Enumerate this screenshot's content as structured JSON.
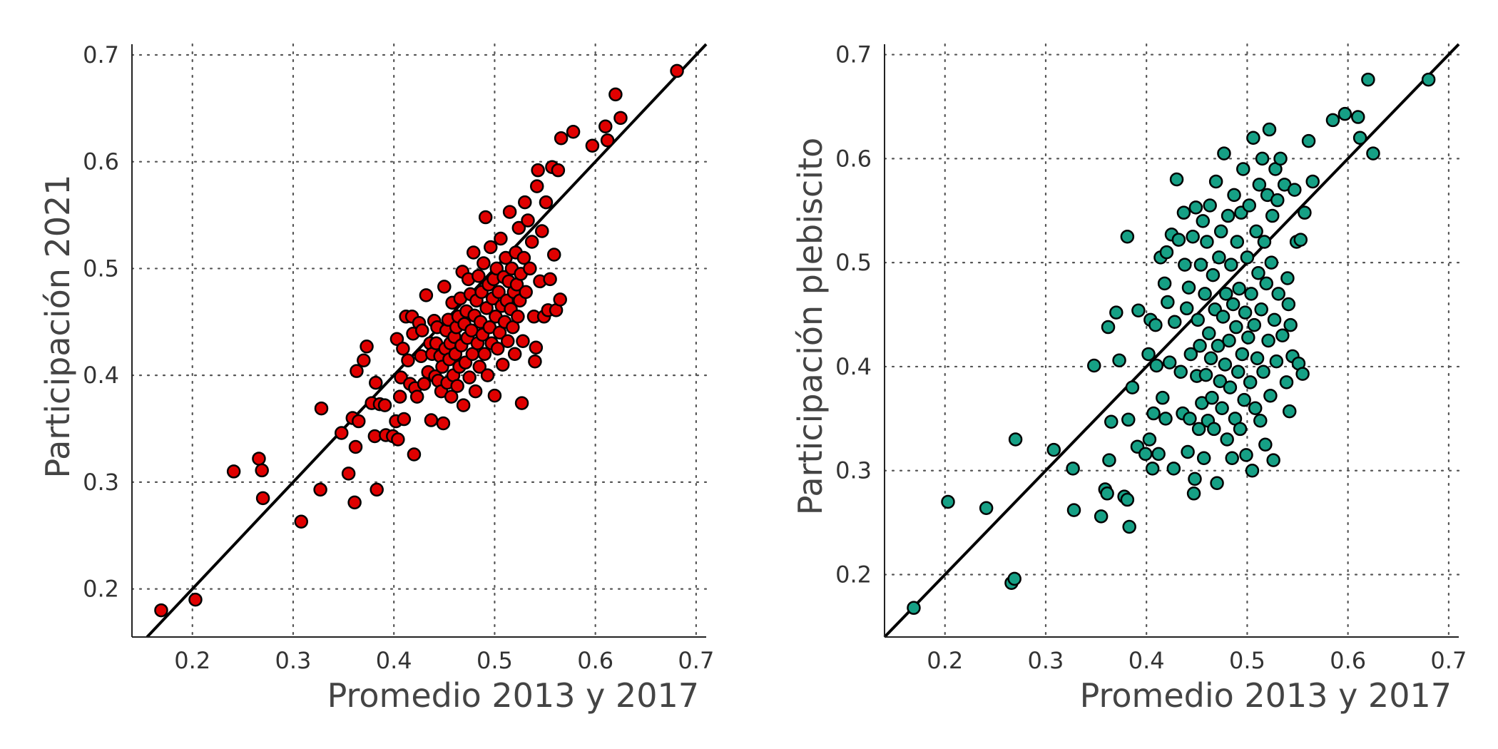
{
  "chart_data": [
    {
      "type": "scatter",
      "xlabel": "Promedio 2013 y 2017",
      "ylabel": "Participación 2021",
      "xlim": [
        0.14,
        0.71
      ],
      "ylim": [
        0.155,
        0.71
      ],
      "xticks": [
        "0.2",
        "0.3",
        "0.4",
        "0.5",
        "0.6",
        "0.7"
      ],
      "yticks": [
        "0.2",
        "0.3",
        "0.4",
        "0.5",
        "0.6",
        "0.7"
      ],
      "grid": true,
      "reference_line": "y = x",
      "marker_color": "#e00000",
      "points": [
        [
          0.169,
          0.18
        ],
        [
          0.203,
          0.19
        ],
        [
          0.241,
          0.31
        ],
        [
          0.266,
          0.322
        ],
        [
          0.269,
          0.311
        ],
        [
          0.27,
          0.285
        ],
        [
          0.308,
          0.263
        ],
        [
          0.327,
          0.293
        ],
        [
          0.328,
          0.369
        ],
        [
          0.348,
          0.346
        ],
        [
          0.355,
          0.308
        ],
        [
          0.359,
          0.36
        ],
        [
          0.361,
          0.281
        ],
        [
          0.362,
          0.333
        ],
        [
          0.363,
          0.404
        ],
        [
          0.365,
          0.357
        ],
        [
          0.37,
          0.414
        ],
        [
          0.373,
          0.427
        ],
        [
          0.378,
          0.374
        ],
        [
          0.381,
          0.343
        ],
        [
          0.382,
          0.393
        ],
        [
          0.383,
          0.293
        ],
        [
          0.386,
          0.373
        ],
        [
          0.391,
          0.372
        ],
        [
          0.392,
          0.344
        ],
        [
          0.399,
          0.343
        ],
        [
          0.402,
          0.357
        ],
        [
          0.403,
          0.434
        ],
        [
          0.404,
          0.34
        ],
        [
          0.406,
          0.38
        ],
        [
          0.407,
          0.398
        ],
        [
          0.409,
          0.425
        ],
        [
          0.41,
          0.359
        ],
        [
          0.412,
          0.455
        ],
        [
          0.414,
          0.414
        ],
        [
          0.416,
          0.392
        ],
        [
          0.418,
          0.455
        ],
        [
          0.419,
          0.439
        ],
        [
          0.42,
          0.326
        ],
        [
          0.421,
          0.388
        ],
        [
          0.423,
          0.38
        ],
        [
          0.425,
          0.449
        ],
        [
          0.427,
          0.418
        ],
        [
          0.428,
          0.442
        ],
        [
          0.43,
          0.392
        ],
        [
          0.432,
          0.475
        ],
        [
          0.434,
          0.403
        ],
        [
          0.436,
          0.43
        ],
        [
          0.437,
          0.358
        ],
        [
          0.438,
          0.42
        ],
        [
          0.44,
          0.451
        ],
        [
          0.441,
          0.399
        ],
        [
          0.442,
          0.43
        ],
        [
          0.443,
          0.445
        ],
        [
          0.444,
          0.395
        ],
        [
          0.446,
          0.418
        ],
        [
          0.447,
          0.385
        ],
        [
          0.448,
          0.408
        ],
        [
          0.449,
          0.355
        ],
        [
          0.45,
          0.483
        ],
        [
          0.451,
          0.425
        ],
        [
          0.452,
          0.442
        ],
        [
          0.453,
          0.393
        ],
        [
          0.454,
          0.452
        ],
        [
          0.455,
          0.415
        ],
        [
          0.456,
          0.43
        ],
        [
          0.457,
          0.38
        ],
        [
          0.458,
          0.468
        ],
        [
          0.459,
          0.4
        ],
        [
          0.46,
          0.436
        ],
        [
          0.461,
          0.42
        ],
        [
          0.462,
          0.445
        ],
        [
          0.463,
          0.39
        ],
        [
          0.464,
          0.455
        ],
        [
          0.465,
          0.408
        ],
        [
          0.466,
          0.472
        ],
        [
          0.467,
          0.428
        ],
        [
          0.468,
          0.497
        ],
        [
          0.469,
          0.372
        ],
        [
          0.47,
          0.448
        ],
        [
          0.471,
          0.412
        ],
        [
          0.472,
          0.46
        ],
        [
          0.473,
          0.435
        ],
        [
          0.474,
          0.49
        ],
        [
          0.475,
          0.398
        ],
        [
          0.476,
          0.476
        ],
        [
          0.477,
          0.442
        ],
        [
          0.478,
          0.42
        ],
        [
          0.479,
          0.515
        ],
        [
          0.48,
          0.456
        ],
        [
          0.481,
          0.385
        ],
        [
          0.482,
          0.47
        ],
        [
          0.483,
          0.43
        ],
        [
          0.484,
          0.493
        ],
        [
          0.485,
          0.408
        ],
        [
          0.486,
          0.45
        ],
        [
          0.487,
          0.478
        ],
        [
          0.488,
          0.438
        ],
        [
          0.489,
          0.505
        ],
        [
          0.49,
          0.42
        ],
        [
          0.491,
          0.548
        ],
        [
          0.492,
          0.463
        ],
        [
          0.493,
          0.4
        ],
        [
          0.494,
          0.485
        ],
        [
          0.495,
          0.445
        ],
        [
          0.496,
          0.52
        ],
        [
          0.497,
          0.43
        ],
        [
          0.498,
          0.472
        ],
        [
          0.499,
          0.49
        ],
        [
          0.5,
          0.381
        ],
        [
          0.501,
          0.455
        ],
        [
          0.502,
          0.5
        ],
        [
          0.503,
          0.425
        ],
        [
          0.504,
          0.478
        ],
        [
          0.505,
          0.44
        ],
        [
          0.506,
          0.528
        ],
        [
          0.507,
          0.465
        ],
        [
          0.508,
          0.41
        ],
        [
          0.509,
          0.492
        ],
        [
          0.51,
          0.45
        ],
        [
          0.511,
          0.51
        ],
        [
          0.512,
          0.47
        ],
        [
          0.513,
          0.432
        ],
        [
          0.514,
          0.488
        ],
        [
          0.515,
          0.553
        ],
        [
          0.516,
          0.462
        ],
        [
          0.517,
          0.5
        ],
        [
          0.518,
          0.445
        ],
        [
          0.519,
          0.478
        ],
        [
          0.52,
          0.42
        ],
        [
          0.521,
          0.515
        ],
        [
          0.522,
          0.485
        ],
        [
          0.523,
          0.455
        ],
        [
          0.524,
          0.538
        ],
        [
          0.525,
          0.47
        ],
        [
          0.526,
          0.495
        ],
        [
          0.527,
          0.374
        ],
        [
          0.528,
          0.432
        ],
        [
          0.529,
          0.51
        ],
        [
          0.53,
          0.562
        ],
        [
          0.531,
          0.478
        ],
        [
          0.533,
          0.545
        ],
        [
          0.535,
          0.5
        ],
        [
          0.537,
          0.525
        ],
        [
          0.539,
          0.455
        ],
        [
          0.54,
          0.413
        ],
        [
          0.541,
          0.426
        ],
        [
          0.542,
          0.577
        ],
        [
          0.543,
          0.592
        ],
        [
          0.545,
          0.488
        ],
        [
          0.547,
          0.535
        ],
        [
          0.549,
          0.455
        ],
        [
          0.551,
          0.562
        ],
        [
          0.553,
          0.461
        ],
        [
          0.555,
          0.49
        ],
        [
          0.557,
          0.595
        ],
        [
          0.559,
          0.513
        ],
        [
          0.561,
          0.461
        ],
        [
          0.563,
          0.592
        ],
        [
          0.565,
          0.471
        ],
        [
          0.566,
          0.622
        ],
        [
          0.578,
          0.628
        ],
        [
          0.597,
          0.615
        ],
        [
          0.61,
          0.633
        ],
        [
          0.612,
          0.62
        ],
        [
          0.62,
          0.663
        ],
        [
          0.625,
          0.641
        ],
        [
          0.681,
          0.685
        ]
      ]
    },
    {
      "type": "scatter",
      "xlabel": "Promedio 2013 y 2017",
      "ylabel": "Participación plebiscito",
      "xlim": [
        0.14,
        0.71
      ],
      "ylim": [
        0.14,
        0.71
      ],
      "xticks": [
        "0.2",
        "0.3",
        "0.4",
        "0.5",
        "0.6",
        "0.7"
      ],
      "yticks": [
        "0.2",
        "0.3",
        "0.4",
        "0.5",
        "0.6",
        "0.7"
      ],
      "grid": true,
      "reference_line": "y = x",
      "marker_color": "#16a085",
      "points": [
        [
          0.169,
          0.168
        ],
        [
          0.203,
          0.27
        ],
        [
          0.241,
          0.264
        ],
        [
          0.266,
          0.192
        ],
        [
          0.269,
          0.196
        ],
        [
          0.27,
          0.33
        ],
        [
          0.308,
          0.32
        ],
        [
          0.327,
          0.302
        ],
        [
          0.328,
          0.262
        ],
        [
          0.348,
          0.401
        ],
        [
          0.355,
          0.256
        ],
        [
          0.359,
          0.282
        ],
        [
          0.361,
          0.278
        ],
        [
          0.362,
          0.438
        ],
        [
          0.363,
          0.31
        ],
        [
          0.365,
          0.347
        ],
        [
          0.37,
          0.452
        ],
        [
          0.373,
          0.406
        ],
        [
          0.378,
          0.275
        ],
        [
          0.381,
          0.272
        ],
        [
          0.381,
          0.525
        ],
        [
          0.382,
          0.349
        ],
        [
          0.383,
          0.246
        ],
        [
          0.386,
          0.38
        ],
        [
          0.391,
          0.323
        ],
        [
          0.392,
          0.454
        ],
        [
          0.399,
          0.316
        ],
        [
          0.402,
          0.412
        ],
        [
          0.403,
          0.33
        ],
        [
          0.404,
          0.445
        ],
        [
          0.406,
          0.302
        ],
        [
          0.407,
          0.355
        ],
        [
          0.409,
          0.44
        ],
        [
          0.41,
          0.401
        ],
        [
          0.412,
          0.316
        ],
        [
          0.414,
          0.505
        ],
        [
          0.416,
          0.37
        ],
        [
          0.418,
          0.48
        ],
        [
          0.419,
          0.35
        ],
        [
          0.42,
          0.51
        ],
        [
          0.421,
          0.462
        ],
        [
          0.423,
          0.404
        ],
        [
          0.425,
          0.527
        ],
        [
          0.427,
          0.302
        ],
        [
          0.428,
          0.443
        ],
        [
          0.43,
          0.58
        ],
        [
          0.432,
          0.522
        ],
        [
          0.434,
          0.395
        ],
        [
          0.436,
          0.355
        ],
        [
          0.437,
          0.548
        ],
        [
          0.438,
          0.498
        ],
        [
          0.44,
          0.456
        ],
        [
          0.441,
          0.318
        ],
        [
          0.442,
          0.476
        ],
        [
          0.443,
          0.35
        ],
        [
          0.444,
          0.412
        ],
        [
          0.446,
          0.525
        ],
        [
          0.447,
          0.278
        ],
        [
          0.448,
          0.292
        ],
        [
          0.449,
          0.553
        ],
        [
          0.45,
          0.391
        ],
        [
          0.451,
          0.445
        ],
        [
          0.452,
          0.34
        ],
        [
          0.453,
          0.42
        ],
        [
          0.454,
          0.498
        ],
        [
          0.455,
          0.365
        ],
        [
          0.456,
          0.54
        ],
        [
          0.457,
          0.312
        ],
        [
          0.458,
          0.47
        ],
        [
          0.459,
          0.392
        ],
        [
          0.46,
          0.52
        ],
        [
          0.461,
          0.348
        ],
        [
          0.462,
          0.432
        ],
        [
          0.463,
          0.555
        ],
        [
          0.464,
          0.408
        ],
        [
          0.465,
          0.37
        ],
        [
          0.466,
          0.488
        ],
        [
          0.467,
          0.34
        ],
        [
          0.468,
          0.455
        ],
        [
          0.469,
          0.578
        ],
        [
          0.47,
          0.288
        ],
        [
          0.471,
          0.42
        ],
        [
          0.472,
          0.505
        ],
        [
          0.473,
          0.386
        ],
        [
          0.474,
          0.53
        ],
        [
          0.475,
          0.36
        ],
        [
          0.476,
          0.448
        ],
        [
          0.477,
          0.605
        ],
        [
          0.478,
          0.402
        ],
        [
          0.479,
          0.47
        ],
        [
          0.48,
          0.33
        ],
        [
          0.481,
          0.545
        ],
        [
          0.482,
          0.425
        ],
        [
          0.483,
          0.38
        ],
        [
          0.484,
          0.498
        ],
        [
          0.485,
          0.312
        ],
        [
          0.486,
          0.46
        ],
        [
          0.487,
          0.565
        ],
        [
          0.488,
          0.35
        ],
        [
          0.489,
          0.438
        ],
        [
          0.49,
          0.52
        ],
        [
          0.491,
          0.395
        ],
        [
          0.492,
          0.475
        ],
        [
          0.493,
          0.34
        ],
        [
          0.494,
          0.548
        ],
        [
          0.495,
          0.412
        ],
        [
          0.496,
          0.59
        ],
        [
          0.497,
          0.368
        ],
        [
          0.498,
          0.452
        ],
        [
          0.499,
          0.315
        ],
        [
          0.5,
          0.505
        ],
        [
          0.501,
          0.428
        ],
        [
          0.502,
          0.555
        ],
        [
          0.503,
          0.385
        ],
        [
          0.504,
          0.47
        ],
        [
          0.505,
          0.3
        ],
        [
          0.506,
          0.62
        ],
        [
          0.507,
          0.44
        ],
        [
          0.508,
          0.36
        ],
        [
          0.509,
          0.53
        ],
        [
          0.51,
          0.408
        ],
        [
          0.511,
          0.49
        ],
        [
          0.512,
          0.575
        ],
        [
          0.513,
          0.348
        ],
        [
          0.514,
          0.455
        ],
        [
          0.515,
          0.6
        ],
        [
          0.516,
          0.395
        ],
        [
          0.517,
          0.52
        ],
        [
          0.518,
          0.325
        ],
        [
          0.519,
          0.48
        ],
        [
          0.52,
          0.565
        ],
        [
          0.521,
          0.425
        ],
        [
          0.522,
          0.628
        ],
        [
          0.523,
          0.372
        ],
        [
          0.524,
          0.5
        ],
        [
          0.525,
          0.545
        ],
        [
          0.526,
          0.31
        ],
        [
          0.527,
          0.445
        ],
        [
          0.528,
          0.59
        ],
        [
          0.529,
          0.405
        ],
        [
          0.53,
          0.56
        ],
        [
          0.531,
          0.47
        ],
        [
          0.533,
          0.6
        ],
        [
          0.535,
          0.43
        ],
        [
          0.537,
          0.575
        ],
        [
          0.539,
          0.385
        ],
        [
          0.54,
          0.485
        ],
        [
          0.541,
          0.46
        ],
        [
          0.542,
          0.357
        ],
        [
          0.543,
          0.44
        ],
        [
          0.545,
          0.41
        ],
        [
          0.547,
          0.57
        ],
        [
          0.549,
          0.52
        ],
        [
          0.551,
          0.403
        ],
        [
          0.553,
          0.522
        ],
        [
          0.555,
          0.393
        ],
        [
          0.557,
          0.548
        ],
        [
          0.561,
          0.617
        ],
        [
          0.565,
          0.578
        ],
        [
          0.585,
          0.637
        ],
        [
          0.597,
          0.643
        ],
        [
          0.61,
          0.64
        ],
        [
          0.612,
          0.62
        ],
        [
          0.62,
          0.676
        ],
        [
          0.625,
          0.605
        ],
        [
          0.68,
          0.676
        ]
      ]
    }
  ]
}
